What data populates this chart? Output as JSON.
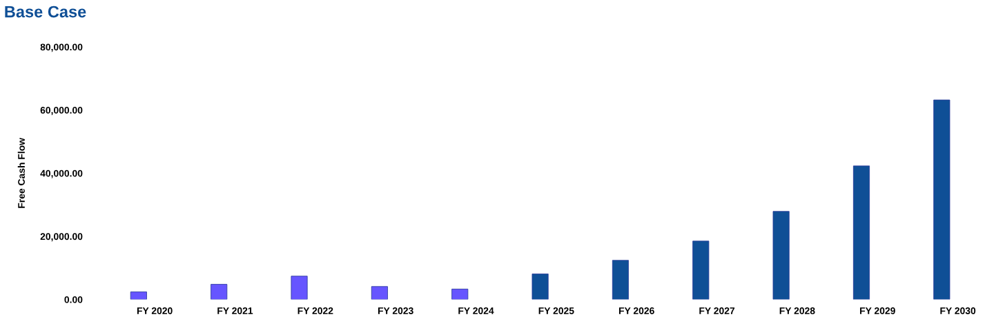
{
  "chart_data": {
    "type": "bar",
    "title": "Base Case",
    "ylabel": "Free Cash Flow",
    "categories": [
      "FY 2020",
      "FY 2021",
      "FY 2022",
      "FY 2023",
      "FY 2024",
      "FY 2025",
      "FY 2026",
      "FY 2027",
      "FY 2028",
      "FY 2029",
      "FY 2030"
    ],
    "values": [
      2400,
      4800,
      7400,
      4100,
      3300,
      8100,
      12400,
      18500,
      27900,
      42300,
      63200
    ],
    "colors": [
      "#6655ff",
      "#6655ff",
      "#6655ff",
      "#6655ff",
      "#6655ff",
      "#0f4f96",
      "#0f4f96",
      "#0f4f96",
      "#0f4f96",
      "#0f4f96",
      "#0f4f96"
    ],
    "ylim": [
      0,
      80000
    ],
    "yticks": [
      {
        "value": 0,
        "label": "0.00"
      },
      {
        "value": 20000,
        "label": "20,000.00"
      },
      {
        "value": 40000,
        "label": "40,000.00"
      },
      {
        "value": 60000,
        "label": "60,000.00"
      },
      {
        "value": 80000,
        "label": "80,000.00"
      }
    ],
    "grid": false,
    "legend": false
  }
}
